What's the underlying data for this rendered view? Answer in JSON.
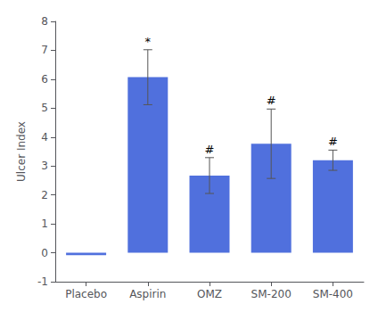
{
  "chart_data": {
    "type": "bar",
    "categories": [
      "Placebo",
      "Aspirin",
      "OMZ",
      "SM-200",
      "SM-400"
    ],
    "values": [
      -0.08,
      6.07,
      2.67,
      3.77,
      3.2
    ],
    "errors": [
      0.0,
      0.95,
      0.62,
      1.2,
      0.35
    ],
    "annotations": [
      null,
      "*",
      "#",
      "#",
      "#"
    ],
    "ylabel": "Ulcer Index",
    "ylim": [
      -1,
      8
    ],
    "yticks": [
      -1,
      0,
      1,
      2,
      3,
      4,
      5,
      6,
      7,
      8
    ],
    "grid": false
  }
}
